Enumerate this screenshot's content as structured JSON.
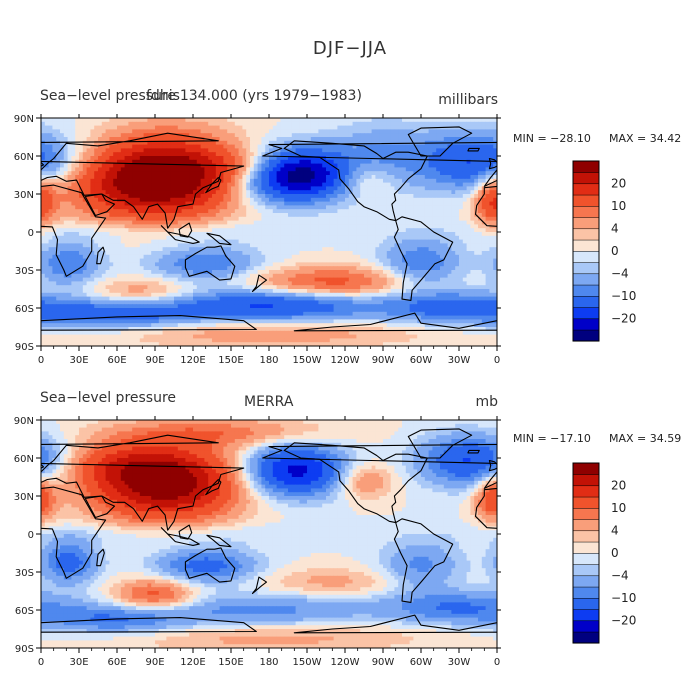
{
  "figure": {
    "title": "DJF−JJA"
  },
  "colors": {
    "scale": [
      "#00007f",
      "#0000c8",
      "#0d3cf2",
      "#2a66ee",
      "#4f88ee",
      "#7da8f2",
      "#a9c8f7",
      "#d7e7fb",
      "#fbe5d4",
      "#fbc3a6",
      "#f99e7a",
      "#f6764f",
      "#f0532c",
      "#e12d15",
      "#c21206",
      "#8f0000"
    ],
    "coast": "#000000",
    "frame": "#000000"
  },
  "chart_data": [
    {
      "type": "heatmap",
      "title": "Sea−level pressure",
      "subtitle": "fdhis134.000 (yrs 1979−1983)",
      "units": "millibars",
      "min_label": "MIN = −28.10",
      "max_label": "MAX =   34.42",
      "min": -28.1,
      "max": 34.42,
      "xlabel": "",
      "ylabel": "",
      "xlim": [
        0,
        360
      ],
      "ylim": [
        -90,
        90
      ],
      "x_ticks": [
        "0",
        "30E",
        "60E",
        "90E",
        "120E",
        "150E",
        "180",
        "150W",
        "120W",
        "90W",
        "60W",
        "30W",
        "0"
      ],
      "y_ticks": [
        "90N",
        "60N",
        "30N",
        "0",
        "30S",
        "60S",
        "90S"
      ],
      "levels": [
        -25,
        -20,
        -15,
        -10,
        -7,
        -4,
        -2,
        0,
        2,
        4,
        7,
        10,
        15,
        20,
        25
      ],
      "colorbar_labels": [
        "20",
        "10",
        "4",
        "0",
        "−4",
        "−10",
        "−20"
      ],
      "features": [
        {
          "lon": 100,
          "lat": 45,
          "amp": 30,
          "sx": 38,
          "sy": 22
        },
        {
          "lon": 60,
          "lat": 35,
          "amp": 10,
          "sx": 40,
          "sy": 18
        },
        {
          "lon": 165,
          "lat": 52,
          "amp": 8,
          "sx": 25,
          "sy": 10
        },
        {
          "lon": 200,
          "lat": 45,
          "amp": -30,
          "sx": 30,
          "sy": 14
        },
        {
          "lon": 345,
          "lat": 55,
          "amp": -16,
          "sx": 30,
          "sy": 16
        },
        {
          "lon": 270,
          "lat": 60,
          "amp": -7,
          "sx": 30,
          "sy": 18
        },
        {
          "lon": 255,
          "lat": 42,
          "amp": 7,
          "sx": 16,
          "sy": 10
        },
        {
          "lon": 357,
          "lat": 25,
          "amp": 15,
          "sx": 10,
          "sy": 14
        },
        {
          "lon": 22,
          "lat": -25,
          "amp": -10,
          "sx": 18,
          "sy": 12
        },
        {
          "lon": 130,
          "lat": -25,
          "amp": -10,
          "sx": 30,
          "sy": 10
        },
        {
          "lon": 300,
          "lat": -25,
          "amp": -10,
          "sx": 22,
          "sy": 14
        },
        {
          "lon": 230,
          "lat": -40,
          "amp": 12,
          "sx": 45,
          "sy": 9
        },
        {
          "lon": 80,
          "lat": -48,
          "amp": 7,
          "sx": 30,
          "sy": 8
        },
        {
          "lon": 180,
          "lat": -58,
          "amp": -16,
          "sx": 60,
          "sy": 9
        },
        {
          "lon": 330,
          "lat": -60,
          "amp": -12,
          "sx": 40,
          "sy": 9
        },
        {
          "lon": 60,
          "lat": -65,
          "amp": -12,
          "sx": 40,
          "sy": 8
        },
        {
          "lon": 180,
          "lat": -80,
          "amp": 6,
          "sx": 90,
          "sy": 8
        },
        {
          "lon": 100,
          "lat": 0,
          "amp": -3,
          "sx": 90,
          "sy": 6
        }
      ]
    },
    {
      "type": "heatmap",
      "title": "Sea−level pressure",
      "subtitle": "MERRA",
      "units": "mb",
      "min_label": "MIN = −17.10",
      "max_label": "MAX =   34.59",
      "min": -17.1,
      "max": 34.59,
      "xlabel": "",
      "ylabel": "",
      "xlim": [
        0,
        360
      ],
      "ylim": [
        -90,
        90
      ],
      "x_ticks": [
        "0",
        "30E",
        "60E",
        "90E",
        "120E",
        "150E",
        "180",
        "150W",
        "120W",
        "90W",
        "60W",
        "30W",
        "0"
      ],
      "y_ticks": [
        "90N",
        "60N",
        "30N",
        "0",
        "30S",
        "60S",
        "90S"
      ],
      "levels": [
        -25,
        -20,
        -15,
        -10,
        -7,
        -4,
        -2,
        0,
        2,
        4,
        7,
        10,
        15,
        20,
        25
      ],
      "colorbar_labels": [
        "20",
        "10",
        "4",
        "0",
        "−4",
        "−10",
        "−20"
      ],
      "features": [
        {
          "lon": 98,
          "lat": 40,
          "amp": 30,
          "sx": 40,
          "sy": 20
        },
        {
          "lon": 60,
          "lat": 55,
          "amp": 8,
          "sx": 35,
          "sy": 12
        },
        {
          "lon": 140,
          "lat": 80,
          "amp": 8,
          "sx": 60,
          "sy": 8
        },
        {
          "lon": 200,
          "lat": 50,
          "amp": -22,
          "sx": 28,
          "sy": 14
        },
        {
          "lon": 340,
          "lat": 58,
          "amp": -16,
          "sx": 28,
          "sy": 14
        },
        {
          "lon": 255,
          "lat": 42,
          "amp": 8,
          "sx": 16,
          "sy": 10
        },
        {
          "lon": 357,
          "lat": 28,
          "amp": 14,
          "sx": 10,
          "sy": 12
        },
        {
          "lon": 22,
          "lat": -22,
          "amp": -12,
          "sx": 16,
          "sy": 12
        },
        {
          "lon": 130,
          "lat": -25,
          "amp": -12,
          "sx": 28,
          "sy": 10
        },
        {
          "lon": 300,
          "lat": -25,
          "amp": -8,
          "sx": 22,
          "sy": 14
        },
        {
          "lon": 230,
          "lat": -38,
          "amp": 5,
          "sx": 40,
          "sy": 8
        },
        {
          "lon": 90,
          "lat": -48,
          "amp": 12,
          "sx": 22,
          "sy": 9
        },
        {
          "lon": 175,
          "lat": -60,
          "amp": -8,
          "sx": 60,
          "sy": 9
        },
        {
          "lon": 330,
          "lat": -58,
          "amp": -10,
          "sx": 40,
          "sy": 9
        },
        {
          "lon": 60,
          "lat": -68,
          "amp": -10,
          "sx": 40,
          "sy": 8
        },
        {
          "lon": 180,
          "lat": -82,
          "amp": 5,
          "sx": 90,
          "sy": 8
        },
        {
          "lon": 100,
          "lat": 0,
          "amp": -3,
          "sx": 90,
          "sy": 6
        }
      ]
    }
  ]
}
